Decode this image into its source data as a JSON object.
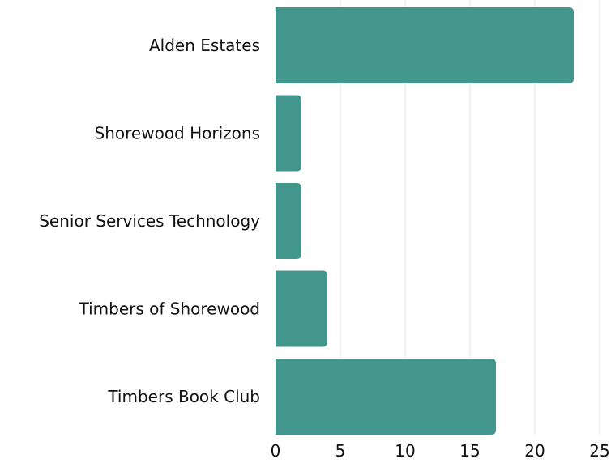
{
  "chart_data": {
    "type": "bar",
    "orientation": "horizontal",
    "categories": [
      "Alden Estates",
      "Shorewood Horizons",
      "Senior Services Technology",
      "Timbers of Shorewood",
      "Timbers Book Club"
    ],
    "values": [
      23,
      2,
      2,
      4,
      17
    ],
    "title": "",
    "xlabel": "",
    "ylabel": "",
    "xlim": [
      0,
      25
    ],
    "x_ticks": [
      0,
      5,
      10,
      15,
      20,
      25
    ],
    "grid": "vertical",
    "legend": "none",
    "bar_color": "#42968C",
    "grid_color": "#E3E3E3"
  }
}
